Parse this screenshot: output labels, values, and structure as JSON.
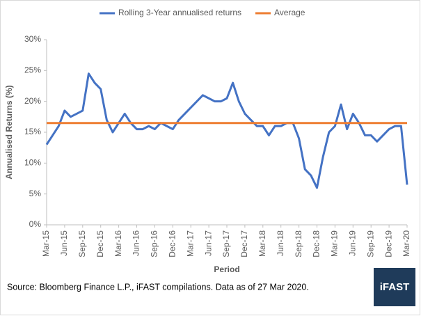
{
  "chart_data": {
    "type": "line",
    "y_label": "Annualised Returns (%)",
    "x_label": "Period",
    "source": "Source: Bloomberg Finance L.P., iFAST compilations. Data as of 27 Mar 2020.",
    "logo": "iFAST",
    "categories": [
      "Mar-15",
      null,
      null,
      "Jun-15",
      null,
      null,
      "Sep-15",
      null,
      null,
      "Dec-15",
      null,
      null,
      "Mar-16",
      null,
      null,
      "Jun-16",
      null,
      null,
      "Sep-16",
      null,
      null,
      "Dec-16",
      null,
      null,
      "Mar-17",
      null,
      null,
      "Jun-17",
      null,
      null,
      "Sep-17",
      null,
      null,
      "Dec-17",
      null,
      null,
      "Mar-18",
      null,
      null,
      "Jun-18",
      null,
      null,
      "Sep-18",
      null,
      null,
      "Dec-18",
      null,
      null,
      "Mar-19",
      null,
      null,
      "Jun-19",
      null,
      null,
      "Sep-19",
      null,
      null,
      "Dec-19",
      null,
      null,
      "Mar-20"
    ],
    "series": [
      {
        "name": "Rolling 3-Year annualised returns",
        "color": "#4472c4",
        "values": [
          13,
          14.5,
          16,
          18.5,
          17.5,
          18,
          18.5,
          24.5,
          23,
          22,
          17,
          15,
          16.5,
          18,
          16.5,
          15.5,
          15.5,
          16,
          15.5,
          16.5,
          16,
          15.5,
          17,
          18,
          19,
          20,
          21,
          20.5,
          20,
          20,
          20.5,
          23,
          20,
          18,
          17,
          16,
          16,
          14.5,
          16,
          16,
          16.5,
          16.5,
          14,
          9,
          8,
          6,
          11,
          15,
          16,
          19.5,
          15.5,
          18,
          16.5,
          14.5,
          14.5,
          13.5,
          14.5,
          15.5,
          16,
          16,
          6.5
        ]
      },
      {
        "name": "Average",
        "color": "#ed7d31",
        "values": [
          16.5,
          16.5,
          16.5,
          16.5,
          16.5,
          16.5,
          16.5,
          16.5,
          16.5,
          16.5,
          16.5,
          16.5,
          16.5,
          16.5,
          16.5,
          16.5,
          16.5,
          16.5,
          16.5,
          16.5,
          16.5,
          16.5,
          16.5,
          16.5,
          16.5,
          16.5,
          16.5,
          16.5,
          16.5,
          16.5,
          16.5,
          16.5,
          16.5,
          16.5,
          16.5,
          16.5,
          16.5,
          16.5,
          16.5,
          16.5,
          16.5,
          16.5,
          16.5,
          16.5,
          16.5,
          16.5,
          16.5,
          16.5,
          16.5,
          16.5,
          16.5,
          16.5,
          16.5,
          16.5,
          16.5,
          16.5,
          16.5,
          16.5,
          16.5,
          16.5,
          16.5
        ]
      }
    ],
    "ylim": [
      0,
      30
    ],
    "yticks": [
      {
        "value": 0,
        "label": "0%"
      },
      {
        "value": 5,
        "label": "5%"
      },
      {
        "value": 10,
        "label": "10%"
      },
      {
        "value": 15,
        "label": "15%"
      },
      {
        "value": 20,
        "label": "20%"
      },
      {
        "value": 25,
        "label": "25%"
      },
      {
        "value": 30,
        "label": "30%"
      }
    ],
    "grid": false
  }
}
